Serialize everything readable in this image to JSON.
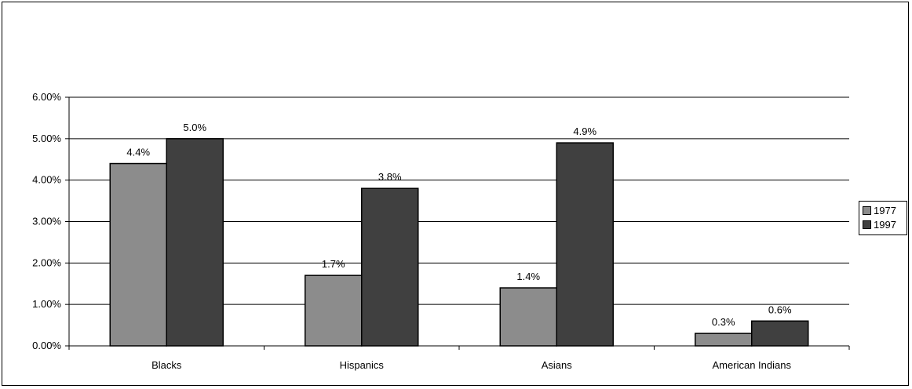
{
  "chart_data": {
    "type": "bar",
    "categories": [
      "Blacks",
      "Hispanics",
      "Asians",
      "American Indians"
    ],
    "series": [
      {
        "name": "1977",
        "values": [
          4.4,
          1.7,
          1.4,
          0.3
        ],
        "labels": [
          "4.4%",
          "1.7%",
          "1.4%",
          "0.3%"
        ],
        "color": "#8c8c8c"
      },
      {
        "name": "1997",
        "values": [
          5.0,
          3.8,
          4.9,
          0.6
        ],
        "labels": [
          "5.0%",
          "3.8%",
          "4.9%",
          "0.6%"
        ],
        "color": "#404040"
      }
    ],
    "yticks": [
      "0.00%",
      "1.00%",
      "2.00%",
      "3.00%",
      "4.00%",
      "5.00%",
      "6.00%"
    ],
    "ylim": [
      0,
      6
    ],
    "grid": true,
    "legend_position": "right"
  }
}
